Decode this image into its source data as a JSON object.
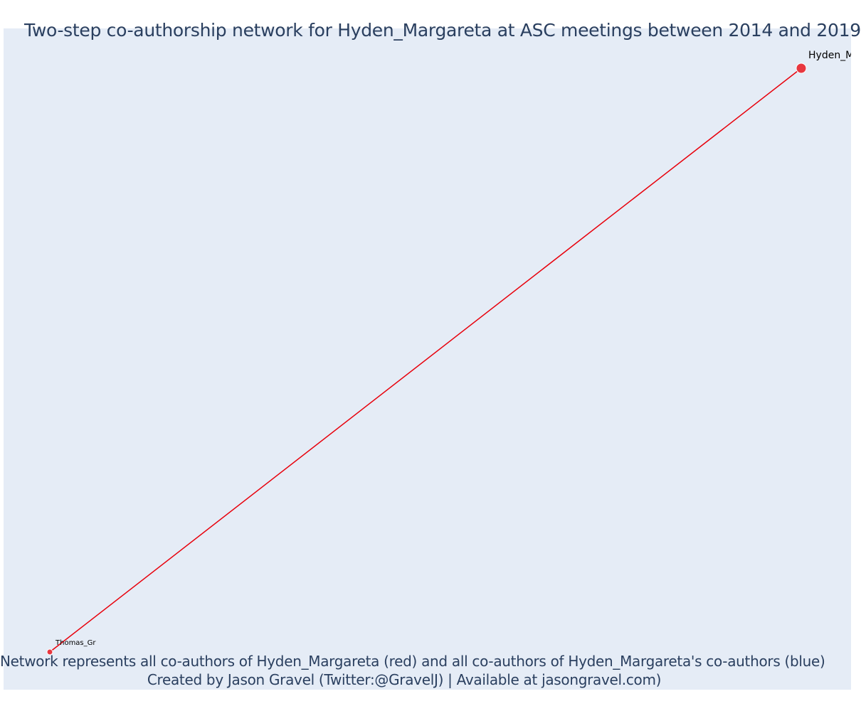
{
  "title": "Two-step co-authorship network for Hyden_Margareta at ASC meetings between 2014 and 2019",
  "footer": {
    "line1": "Network represents all co-authors of Hyden_Margareta (red) and all co-authors of Hyden_Margareta's co-authors (blue)",
    "line2": "Created by Jason Gravel (Twitter:@GravelJ) | Available at jasongravel.com)"
  },
  "colors": {
    "plot_background": "#e5ecf6",
    "focal_author": "#e8373f",
    "coauthor": "#e8373f",
    "edge": "#e8000b",
    "text": "#2a3f5f"
  },
  "chart_data": {
    "type": "network",
    "title": "Two-step co-authorship network for Hyden_Margareta at ASC meetings between 2014 and 2019",
    "nodes": [
      {
        "id": "Hyden_Margareta",
        "label": "Hyden_M",
        "group": "focal",
        "color": "red"
      },
      {
        "id": "Thomas_Gr",
        "label": "Thomas_Gr",
        "group": "co-author",
        "color": "red"
      }
    ],
    "edges": [
      {
        "source": "Hyden_Margareta",
        "target": "Thomas_Gr",
        "color": "red"
      }
    ],
    "grid": false
  }
}
